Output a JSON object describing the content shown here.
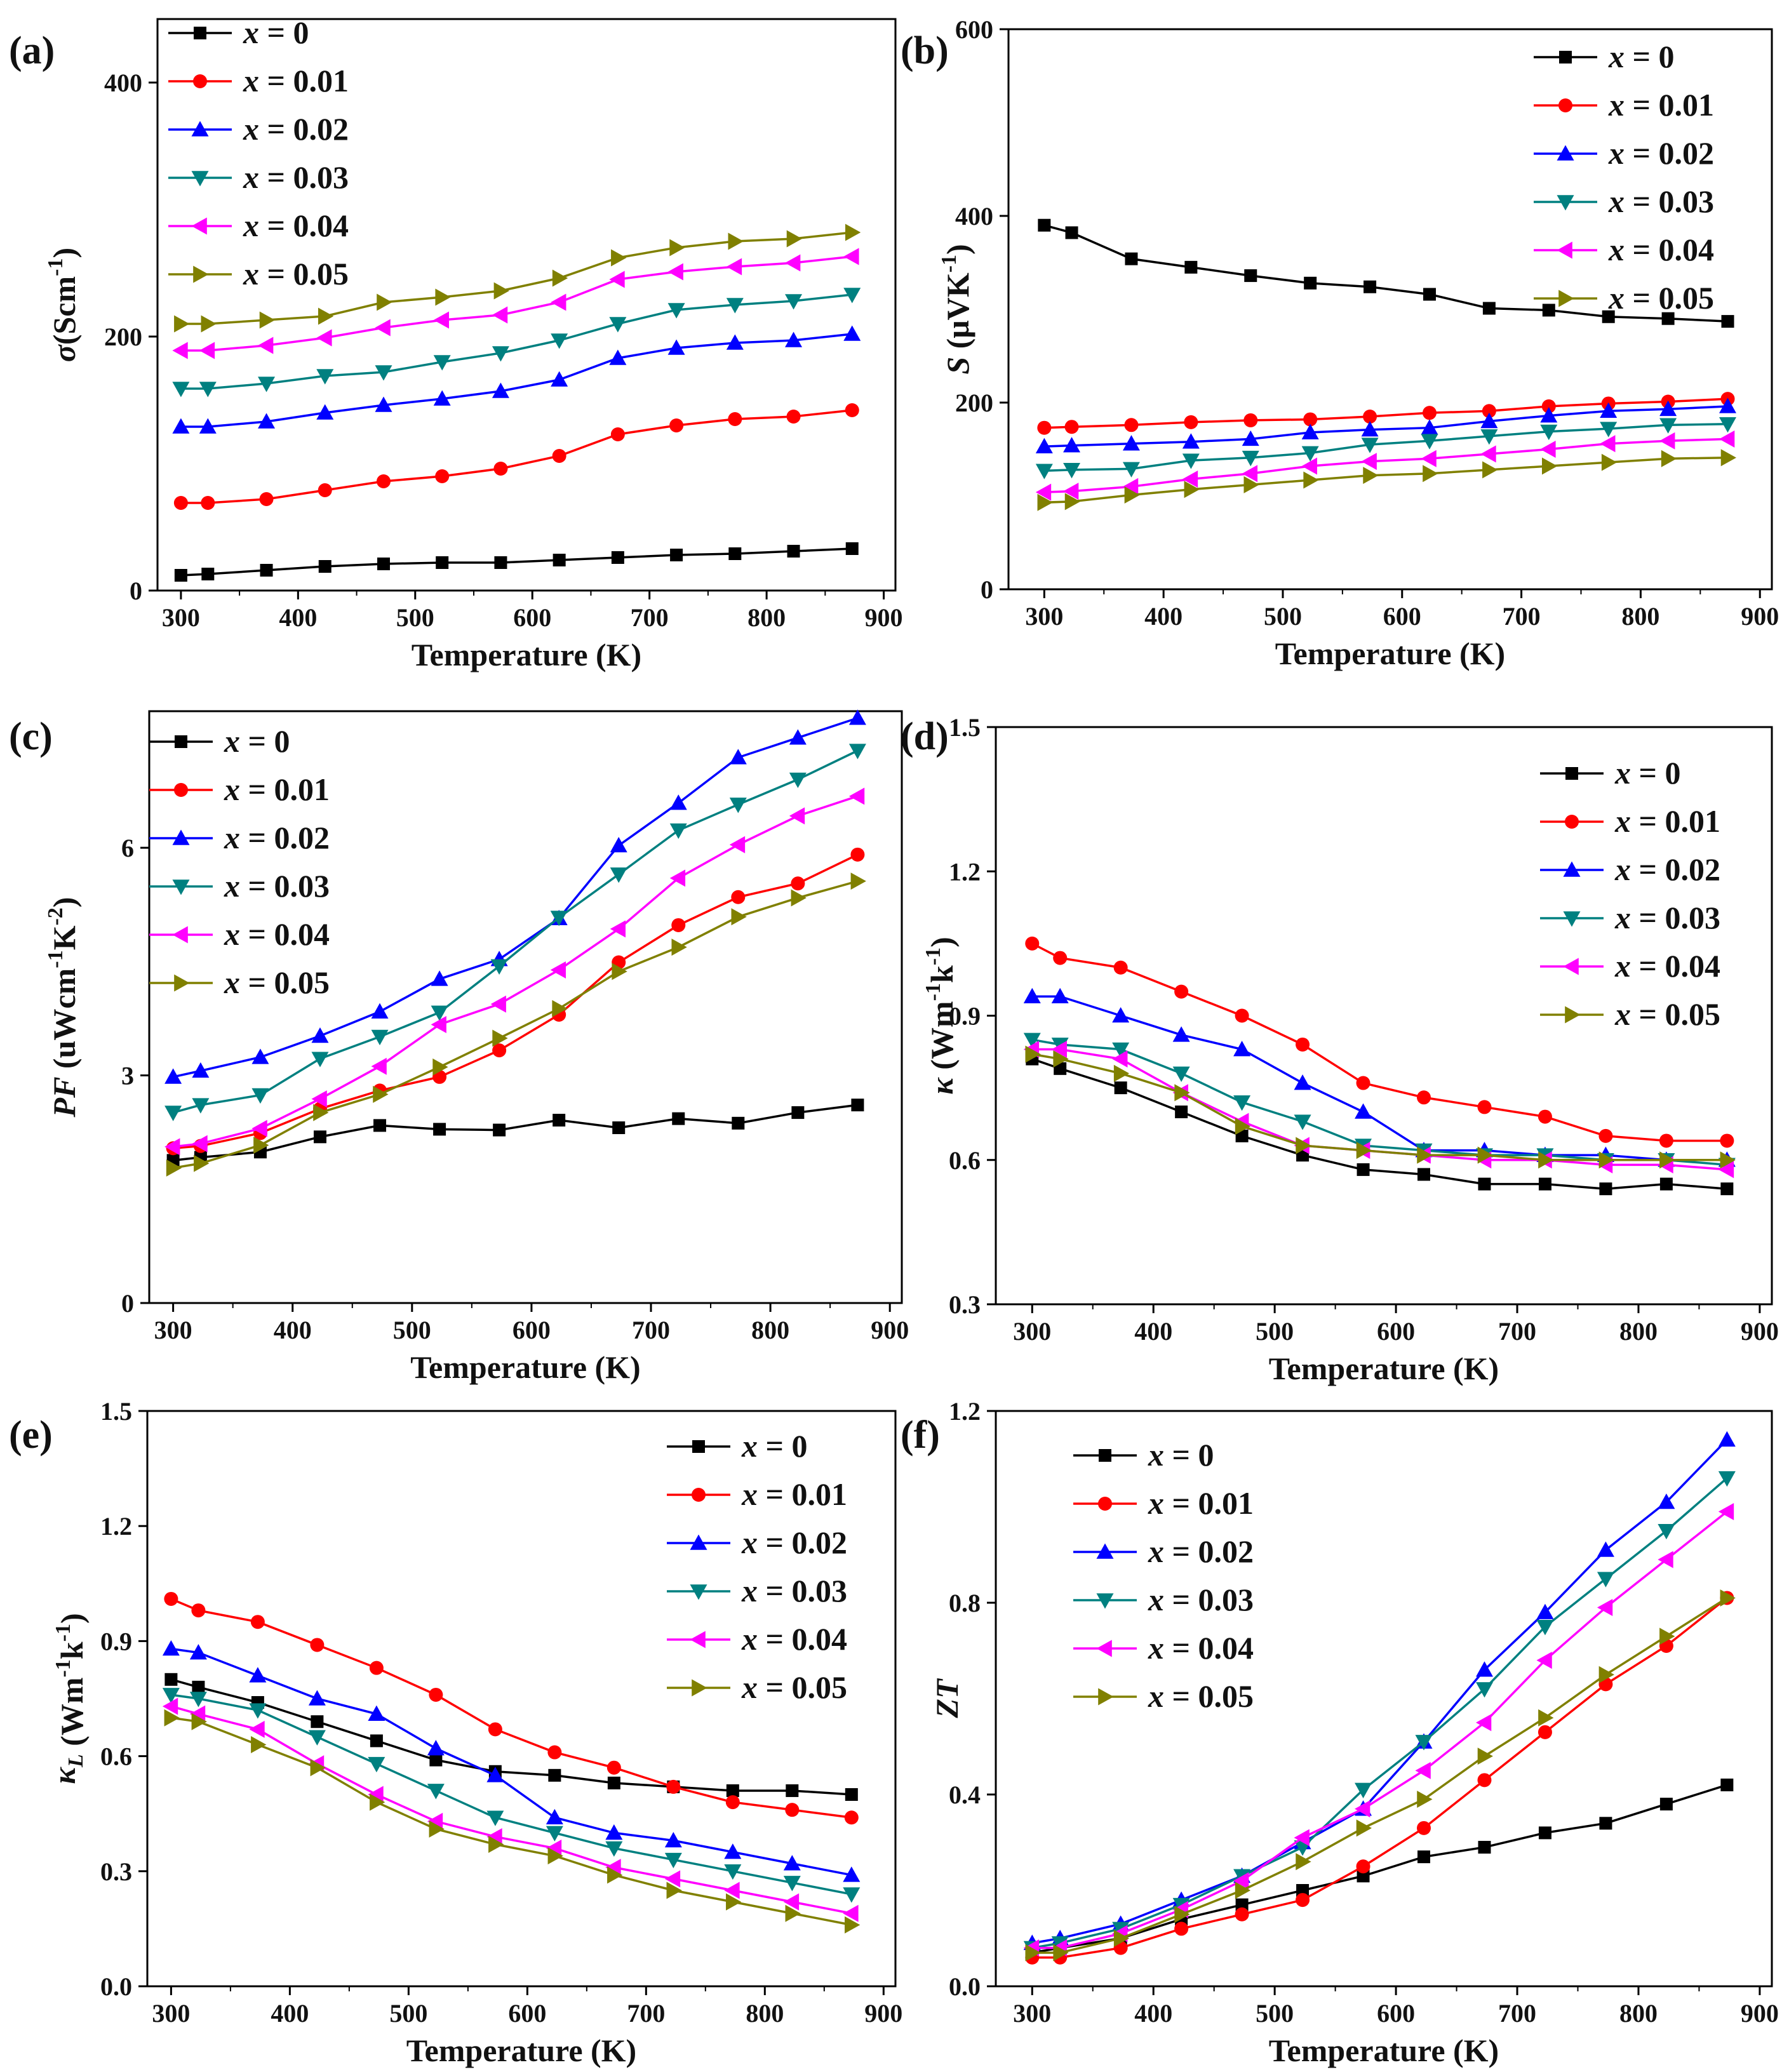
{
  "figure": {
    "colors": [
      "#000000",
      "#ff0000",
      "#0000ff",
      "#008080",
      "#ff00ff",
      "#808000"
    ],
    "markers": [
      "square",
      "circle",
      "triangle-up",
      "triangle-down",
      "triangle-left",
      "triangle-right"
    ],
    "xlabel": "Temperature (K)"
  },
  "chart_data": [
    {
      "panel": "(a)",
      "type": "line",
      "ylabel_main": "σ",
      "ylabel_unit": "(Scm",
      "ylabel_sup": "-1",
      "ylabel_close": ")",
      "xlim": [
        280,
        910
      ],
      "ylim": [
        0,
        450
      ],
      "xticks": [
        300,
        400,
        500,
        600,
        700,
        800,
        900
      ],
      "yticks": [
        0,
        200,
        400
      ],
      "legend_position": "top-left",
      "x": [
        300,
        323,
        373,
        423,
        473,
        523,
        573,
        623,
        673,
        723,
        773,
        823,
        873
      ],
      "series": [
        {
          "name": "x = 0",
          "values": [
            12,
            13,
            16,
            19,
            21,
            22,
            22,
            24,
            26,
            28,
            29,
            31,
            33
          ]
        },
        {
          "name": "x = 0.01",
          "values": [
            69,
            69,
            72,
            79,
            86,
            90,
            96,
            106,
            123,
            130,
            135,
            137,
            142
          ]
        },
        {
          "name": "x = 0.02",
          "values": [
            129,
            129,
            133,
            140,
            146,
            151,
            157,
            166,
            183,
            191,
            195,
            197,
            202
          ]
        },
        {
          "name": "x = 0.03",
          "values": [
            159,
            159,
            163,
            169,
            172,
            180,
            187,
            197,
            210,
            221,
            225,
            228,
            233
          ]
        },
        {
          "name": "x = 0.04",
          "values": [
            189,
            189,
            193,
            199,
            207,
            213,
            217,
            227,
            245,
            251,
            255,
            258,
            263
          ]
        },
        {
          "name": "x = 0.05",
          "values": [
            210,
            210,
            213,
            216,
            227,
            231,
            236,
            246,
            262,
            270,
            275,
            277,
            282
          ]
        }
      ]
    },
    {
      "panel": "(b)",
      "type": "line",
      "ylabel_main": "S",
      "ylabel_unit": " (μVK",
      "ylabel_sup": "-1",
      "ylabel_close": ")",
      "xlim": [
        270,
        910
      ],
      "ylim": [
        0,
        600
      ],
      "xticks": [
        300,
        400,
        500,
        600,
        700,
        800,
        900
      ],
      "yticks": [
        0,
        200,
        400,
        600
      ],
      "legend_position": "top-right",
      "x": [
        300,
        323,
        373,
        423,
        473,
        523,
        573,
        623,
        673,
        723,
        773,
        823,
        873
      ],
      "series": [
        {
          "name": "x = 0",
          "values": [
            390,
            382,
            354,
            345,
            336,
            328,
            324,
            316,
            301,
            299,
            292,
            290,
            287
          ]
        },
        {
          "name": "x = 0.01",
          "values": [
            173,
            174,
            176,
            179,
            181,
            182,
            185,
            189,
            191,
            196,
            199,
            201,
            204
          ]
        },
        {
          "name": "x = 0.02",
          "values": [
            153,
            154,
            156,
            158,
            161,
            168,
            171,
            173,
            180,
            186,
            191,
            193,
            196
          ]
        },
        {
          "name": "x = 0.03",
          "values": [
            127,
            128,
            129,
            138,
            141,
            146,
            155,
            159,
            164,
            169,
            172,
            176,
            177
          ]
        },
        {
          "name": "x = 0.04",
          "values": [
            104,
            105,
            110,
            118,
            124,
            132,
            137,
            140,
            145,
            150,
            156,
            159,
            161
          ]
        },
        {
          "name": "x = 0.05",
          "values": [
            93,
            94,
            101,
            107,
            112,
            117,
            122,
            124,
            128,
            132,
            136,
            140,
            141
          ]
        }
      ]
    },
    {
      "panel": "(c)",
      "type": "line",
      "ylabel_main": "PF",
      "ylabel_unit": " (uWcm",
      "ylabel_sup": "-1",
      "ylabel_mid": "K",
      "ylabel_sup2": "-2",
      "ylabel_close": ")",
      "xlim": [
        280,
        910
      ],
      "ylim": [
        0,
        7.8
      ],
      "xticks": [
        300,
        400,
        500,
        600,
        700,
        800,
        900
      ],
      "yticks": [
        0,
        3,
        6
      ],
      "legend_position": "top-left",
      "x": [
        300,
        323,
        373,
        423,
        473,
        523,
        573,
        623,
        673,
        723,
        773,
        823,
        873
      ],
      "series": [
        {
          "name": "x = 0",
          "values": [
            1.88,
            1.92,
            1.99,
            2.19,
            2.34,
            2.29,
            2.28,
            2.41,
            2.31,
            2.43,
            2.37,
            2.51,
            2.61
          ]
        },
        {
          "name": "x = 0.01",
          "values": [
            2.04,
            2.07,
            2.24,
            2.56,
            2.8,
            2.98,
            3.33,
            3.8,
            4.49,
            4.98,
            5.35,
            5.53,
            5.91
          ]
        },
        {
          "name": "x = 0.02",
          "values": [
            2.98,
            3.06,
            3.24,
            3.52,
            3.84,
            4.27,
            4.53,
            5.07,
            6.03,
            6.59,
            7.19,
            7.45,
            7.71
          ]
        },
        {
          "name": "x = 0.03",
          "values": [
            2.51,
            2.61,
            2.74,
            3.22,
            3.51,
            3.83,
            4.44,
            5.08,
            5.65,
            6.23,
            6.57,
            6.9,
            7.28
          ]
        },
        {
          "name": "x = 0.04",
          "values": [
            2.06,
            2.1,
            2.3,
            2.69,
            3.12,
            3.67,
            3.94,
            4.39,
            4.93,
            5.6,
            6.04,
            6.42,
            6.68
          ]
        },
        {
          "name": "x = 0.05",
          "values": [
            1.78,
            1.84,
            2.08,
            2.51,
            2.75,
            3.11,
            3.49,
            3.88,
            4.37,
            4.69,
            5.09,
            5.34,
            5.56
          ]
        }
      ]
    },
    {
      "panel": "(d)",
      "type": "line",
      "ylabel_main": "κ",
      "ylabel_unit": " (Wm",
      "ylabel_sup": "-1",
      "ylabel_mid": "k",
      "ylabel_sup2": "-1",
      "ylabel_close": ")",
      "xlim": [
        270,
        910
      ],
      "ylim": [
        0.3,
        1.5
      ],
      "xticks": [
        300,
        400,
        500,
        600,
        700,
        800,
        900
      ],
      "yticks": [
        0.3,
        0.6,
        0.9,
        1.2,
        1.5
      ],
      "legend_position": "top-right",
      "x": [
        300,
        323,
        373,
        423,
        473,
        523,
        573,
        623,
        673,
        723,
        773,
        823,
        873
      ],
      "series": [
        {
          "name": "x = 0",
          "values": [
            0.81,
            0.79,
            0.75,
            0.7,
            0.65,
            0.61,
            0.58,
            0.57,
            0.55,
            0.55,
            0.54,
            0.55,
            0.54
          ]
        },
        {
          "name": "x = 0.01",
          "values": [
            1.05,
            1.02,
            1.0,
            0.95,
            0.9,
            0.84,
            0.76,
            0.73,
            0.71,
            0.69,
            0.65,
            0.64,
            0.64
          ]
        },
        {
          "name": "x = 0.02",
          "values": [
            0.94,
            0.94,
            0.9,
            0.86,
            0.83,
            0.76,
            0.7,
            0.62,
            0.62,
            0.61,
            0.61,
            0.6,
            0.6
          ]
        },
        {
          "name": "x = 0.03",
          "values": [
            0.85,
            0.84,
            0.83,
            0.78,
            0.72,
            0.68,
            0.63,
            0.62,
            0.61,
            0.61,
            0.6,
            0.6,
            0.59
          ]
        },
        {
          "name": "x = 0.04",
          "values": [
            0.83,
            0.83,
            0.81,
            0.74,
            0.68,
            0.63,
            0.62,
            0.61,
            0.6,
            0.6,
            0.59,
            0.59,
            0.58
          ]
        },
        {
          "name": "x = 0.05",
          "values": [
            0.82,
            0.81,
            0.78,
            0.74,
            0.67,
            0.63,
            0.62,
            0.61,
            0.61,
            0.6,
            0.6,
            0.6,
            0.6
          ]
        }
      ]
    },
    {
      "panel": "(e)",
      "type": "line",
      "ylabel_main": "κ",
      "ylabel_sub": "L",
      "ylabel_unit": " (Wm",
      "ylabel_sup": "-1",
      "ylabel_mid": "k",
      "ylabel_sup2": "-1",
      "ylabel_close": ")",
      "xlim": [
        280,
        910
      ],
      "ylim": [
        0,
        1.5
      ],
      "xticks": [
        300,
        400,
        500,
        600,
        700,
        800,
        900
      ],
      "yticks": [
        0.0,
        0.3,
        0.6,
        0.9,
        1.2,
        1.5
      ],
      "legend_position": "top-right",
      "x": [
        300,
        323,
        373,
        423,
        473,
        523,
        573,
        623,
        673,
        723,
        773,
        823,
        873
      ],
      "series": [
        {
          "name": "x = 0",
          "values": [
            0.8,
            0.78,
            0.74,
            0.69,
            0.64,
            0.59,
            0.56,
            0.55,
            0.53,
            0.52,
            0.51,
            0.51,
            0.5
          ]
        },
        {
          "name": "x = 0.01",
          "values": [
            1.01,
            0.98,
            0.95,
            0.89,
            0.83,
            0.76,
            0.67,
            0.61,
            0.57,
            0.52,
            0.48,
            0.46,
            0.44
          ]
        },
        {
          "name": "x = 0.02",
          "values": [
            0.88,
            0.87,
            0.81,
            0.75,
            0.71,
            0.62,
            0.55,
            0.44,
            0.4,
            0.38,
            0.35,
            0.32,
            0.29
          ]
        },
        {
          "name": "x = 0.03",
          "values": [
            0.76,
            0.75,
            0.72,
            0.65,
            0.58,
            0.51,
            0.44,
            0.4,
            0.36,
            0.33,
            0.3,
            0.27,
            0.24
          ]
        },
        {
          "name": "x = 0.04",
          "values": [
            0.73,
            0.71,
            0.67,
            0.58,
            0.5,
            0.43,
            0.39,
            0.36,
            0.31,
            0.28,
            0.25,
            0.22,
            0.19
          ]
        },
        {
          "name": "x = 0.05",
          "values": [
            0.7,
            0.69,
            0.63,
            0.57,
            0.48,
            0.41,
            0.37,
            0.34,
            0.29,
            0.25,
            0.22,
            0.19,
            0.16
          ]
        }
      ]
    },
    {
      "panel": "(f)",
      "type": "line",
      "ylabel_main": "ZT",
      "xlim": [
        270,
        910
      ],
      "ylim": [
        0,
        1.2
      ],
      "xticks": [
        300,
        400,
        500,
        600,
        700,
        800,
        900
      ],
      "yticks": [
        0.0,
        0.4,
        0.8,
        1.2
      ],
      "legend_position": "top-left",
      "x": [
        300,
        323,
        373,
        423,
        473,
        523,
        573,
        623,
        673,
        723,
        773,
        823,
        873
      ],
      "series": [
        {
          "name": "x = 0",
          "values": [
            0.07,
            0.08,
            0.1,
            0.14,
            0.17,
            0.2,
            0.23,
            0.27,
            0.29,
            0.32,
            0.34,
            0.38,
            0.42
          ]
        },
        {
          "name": "x = 0.01",
          "values": [
            0.06,
            0.06,
            0.08,
            0.12,
            0.15,
            0.18,
            0.25,
            0.33,
            0.43,
            0.53,
            0.63,
            0.71,
            0.81
          ]
        },
        {
          "name": "x = 0.02",
          "values": [
            0.09,
            0.1,
            0.13,
            0.18,
            0.23,
            0.3,
            0.37,
            0.51,
            0.66,
            0.78,
            0.91,
            1.01,
            1.14
          ]
        },
        {
          "name": "x = 0.03",
          "values": [
            0.08,
            0.09,
            0.12,
            0.17,
            0.23,
            0.29,
            0.41,
            0.51,
            0.62,
            0.75,
            0.85,
            0.95,
            1.06
          ]
        },
        {
          "name": "x = 0.04",
          "values": [
            0.08,
            0.08,
            0.11,
            0.16,
            0.22,
            0.31,
            0.37,
            0.45,
            0.55,
            0.68,
            0.79,
            0.89,
            0.99
          ]
        },
        {
          "name": "x = 0.05",
          "values": [
            0.07,
            0.07,
            0.1,
            0.15,
            0.2,
            0.26,
            0.33,
            0.39,
            0.48,
            0.56,
            0.65,
            0.73,
            0.81
          ]
        }
      ]
    }
  ]
}
